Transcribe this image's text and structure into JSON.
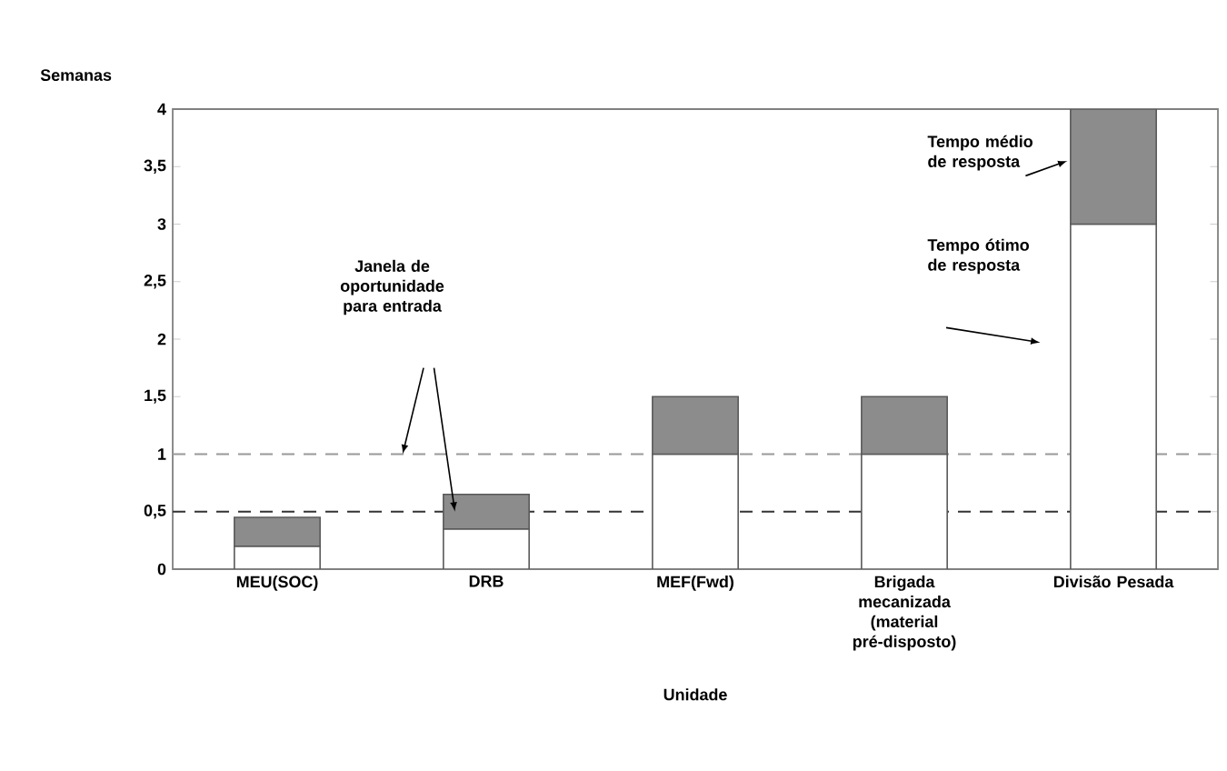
{
  "chart_data": {
    "type": "bar",
    "stacked": true,
    "ylabel": "Semanas",
    "xlabel": "Unidade",
    "categories": [
      "MEU(SOC)",
      "DRB",
      "MEF(Fwd)",
      "Brigada mecanizada (material pré-disposto)",
      "Divisão Pesada"
    ],
    "series": [
      {
        "name": "Tempo ótimo de resposta",
        "color": "#ffffff",
        "values": [
          0.2,
          0.35,
          1,
          1,
          3
        ]
      },
      {
        "name": "Tempo médio de resposta",
        "color": "#8c8c8c",
        "values": [
          0.25,
          0.3,
          0.5,
          0.5,
          1
        ]
      }
    ],
    "ylim": [
      0,
      4
    ],
    "yticks": [
      0,
      {
        "value": 0.5,
        "label": "0,5"
      },
      1,
      {
        "value": 1.5,
        "label": "1,5"
      },
      2,
      {
        "value": 2.5,
        "label": "2,5"
      },
      3,
      {
        "value": 3.5,
        "label": "3,5"
      },
      4
    ],
    "ref_lines": [
      {
        "axis": "y",
        "value": 0.5,
        "color": "#333333",
        "line_style": "dashed"
      },
      {
        "axis": "y",
        "value": 1,
        "color": "#999999",
        "line_style": "dashed"
      }
    ],
    "annotations": [
      "Janela de oportunidade para entrada"
    ],
    "legend": false
  }
}
